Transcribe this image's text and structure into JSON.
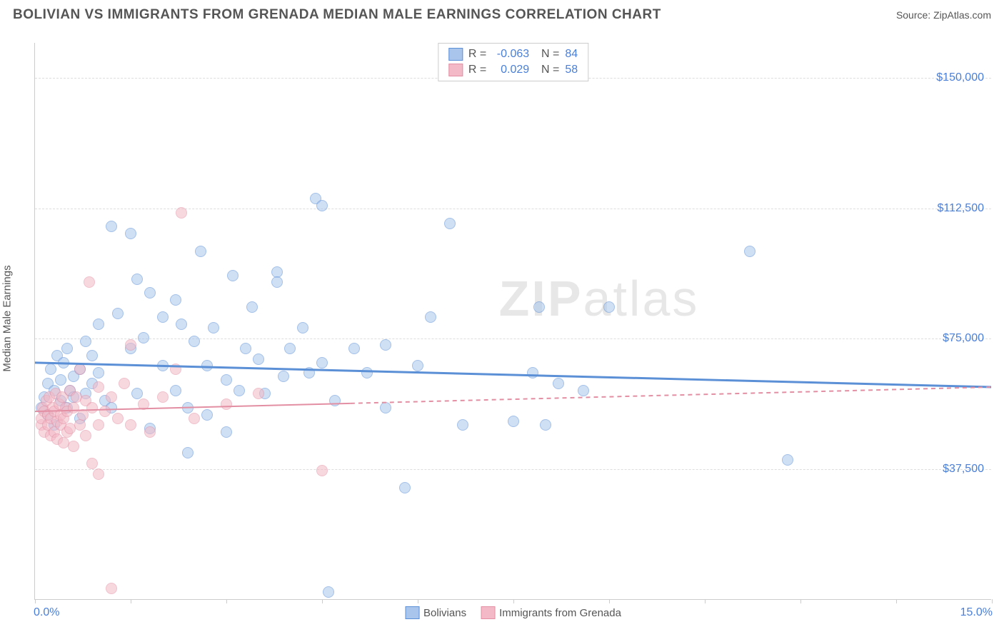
{
  "title": "BOLIVIAN VS IMMIGRANTS FROM GRENADA MEDIAN MALE EARNINGS CORRELATION CHART",
  "source_label": "Source: ",
  "source_value": "ZipAtlas.com",
  "ylabel": "Median Male Earnings",
  "watermark": "ZIPatlas",
  "chart": {
    "type": "scatter",
    "background_color": "#ffffff",
    "grid_color": "#dddddd",
    "axis_color": "#cccccc",
    "text_color": "#555555",
    "value_color": "#4a7fd8",
    "xlim": [
      0,
      15
    ],
    "ylim": [
      0,
      160000
    ],
    "xticks_pct": [
      0,
      10,
      20,
      30,
      40,
      50,
      60,
      70,
      80,
      90,
      100
    ],
    "yticks": [
      {
        "v": 37500,
        "label": "$37,500"
      },
      {
        "v": 75000,
        "label": "$75,000"
      },
      {
        "v": 112500,
        "label": "$112,500"
      },
      {
        "v": 150000,
        "label": "$150,000"
      }
    ],
    "x_start_label": "0.0%",
    "x_end_label": "15.0%",
    "marker_radius": 8,
    "marker_opacity": 0.55,
    "series": [
      {
        "name": "Bolivians",
        "fill": "#a9c5ec",
        "stroke": "#5b8fd6",
        "R": "-0.063",
        "N": "84",
        "trend": {
          "y_start": 68000,
          "y_end": 61000,
          "width": 3,
          "dash": "none",
          "x_extent_pct": 100
        },
        "points": [
          [
            0.1,
            55000
          ],
          [
            0.15,
            58000
          ],
          [
            0.2,
            62000
          ],
          [
            0.2,
            53000
          ],
          [
            0.25,
            66000
          ],
          [
            0.3,
            60000
          ],
          [
            0.3,
            50000
          ],
          [
            0.35,
            70000
          ],
          [
            0.4,
            57000
          ],
          [
            0.4,
            63000
          ],
          [
            0.45,
            68000
          ],
          [
            0.5,
            55000
          ],
          [
            0.5,
            72000
          ],
          [
            0.55,
            60000
          ],
          [
            0.6,
            64000
          ],
          [
            0.6,
            58000
          ],
          [
            0.7,
            66000
          ],
          [
            0.7,
            52000
          ],
          [
            0.8,
            74000
          ],
          [
            0.8,
            59000
          ],
          [
            0.9,
            70000
          ],
          [
            0.9,
            62000
          ],
          [
            1.0,
            79000
          ],
          [
            1.0,
            65000
          ],
          [
            1.1,
            57000
          ],
          [
            1.2,
            55000
          ],
          [
            1.2,
            107000
          ],
          [
            1.3,
            82000
          ],
          [
            1.5,
            105000
          ],
          [
            1.5,
            72000
          ],
          [
            1.6,
            92000
          ],
          [
            1.6,
            59000
          ],
          [
            1.7,
            75000
          ],
          [
            1.8,
            88000
          ],
          [
            1.8,
            49000
          ],
          [
            2.0,
            67000
          ],
          [
            2.0,
            81000
          ],
          [
            2.2,
            86000
          ],
          [
            2.2,
            60000
          ],
          [
            2.3,
            79000
          ],
          [
            2.4,
            42000
          ],
          [
            2.4,
            55000
          ],
          [
            2.5,
            74000
          ],
          [
            2.6,
            100000
          ],
          [
            2.7,
            53000
          ],
          [
            2.7,
            67000
          ],
          [
            2.8,
            78000
          ],
          [
            3.0,
            63000
          ],
          [
            3.0,
            48000
          ],
          [
            3.1,
            93000
          ],
          [
            3.2,
            60000
          ],
          [
            3.3,
            72000
          ],
          [
            3.4,
            84000
          ],
          [
            3.5,
            69000
          ],
          [
            3.6,
            59000
          ],
          [
            3.8,
            94000
          ],
          [
            3.8,
            91000
          ],
          [
            3.9,
            64000
          ],
          [
            4.0,
            72000
          ],
          [
            4.2,
            78000
          ],
          [
            4.4,
            115000
          ],
          [
            4.5,
            68000
          ],
          [
            4.5,
            113000
          ],
          [
            4.6,
            2000
          ],
          [
            4.7,
            57000
          ],
          [
            5.0,
            72000
          ],
          [
            5.2,
            65000
          ],
          [
            5.5,
            55000
          ],
          [
            5.5,
            73000
          ],
          [
            5.8,
            32000
          ],
          [
            6.0,
            67000
          ],
          [
            6.2,
            81000
          ],
          [
            6.5,
            108000
          ],
          [
            6.7,
            50000
          ],
          [
            7.5,
            51000
          ],
          [
            7.8,
            65000
          ],
          [
            7.9,
            84000
          ],
          [
            8.0,
            50000
          ],
          [
            8.6,
            60000
          ],
          [
            9.0,
            84000
          ],
          [
            11.2,
            100000
          ],
          [
            11.8,
            40000
          ],
          [
            8.2,
            62000
          ],
          [
            4.3,
            65000
          ]
        ]
      },
      {
        "name": "Immigrants from Grenada",
        "fill": "#f3b9c6",
        "stroke": "#e38fa3",
        "R": "0.029",
        "N": "58",
        "trend": {
          "y_start": 54000,
          "y_end": 61000,
          "width": 2,
          "dash": "6,5",
          "x_extent_pct": 100,
          "solid_until_pct": 33
        },
        "points": [
          [
            0.1,
            50000
          ],
          [
            0.1,
            52000
          ],
          [
            0.12,
            55000
          ],
          [
            0.15,
            48000
          ],
          [
            0.15,
            54000
          ],
          [
            0.18,
            57000
          ],
          [
            0.2,
            50000
          ],
          [
            0.2,
            53000
          ],
          [
            0.22,
            58000
          ],
          [
            0.25,
            47000
          ],
          [
            0.25,
            52000
          ],
          [
            0.28,
            55000
          ],
          [
            0.3,
            48000
          ],
          [
            0.3,
            54000
          ],
          [
            0.32,
            59000
          ],
          [
            0.35,
            46000
          ],
          [
            0.35,
            51000
          ],
          [
            0.38,
            56000
          ],
          [
            0.4,
            50000
          ],
          [
            0.4,
            53000
          ],
          [
            0.42,
            58000
          ],
          [
            0.45,
            45000
          ],
          [
            0.45,
            52000
          ],
          [
            0.48,
            55000
          ],
          [
            0.5,
            48000
          ],
          [
            0.5,
            54000
          ],
          [
            0.55,
            60000
          ],
          [
            0.55,
            49000
          ],
          [
            0.6,
            55000
          ],
          [
            0.6,
            44000
          ],
          [
            0.65,
            58000
          ],
          [
            0.7,
            50000
          ],
          [
            0.7,
            66000
          ],
          [
            0.75,
            53000
          ],
          [
            0.8,
            57000
          ],
          [
            0.8,
            47000
          ],
          [
            0.85,
            91000
          ],
          [
            0.9,
            55000
          ],
          [
            0.9,
            39000
          ],
          [
            1.0,
            50000
          ],
          [
            1.0,
            61000
          ],
          [
            1.0,
            36000
          ],
          [
            1.1,
            54000
          ],
          [
            1.2,
            58000
          ],
          [
            1.2,
            3000
          ],
          [
            1.3,
            52000
          ],
          [
            1.4,
            62000
          ],
          [
            1.5,
            50000
          ],
          [
            1.5,
            73000
          ],
          [
            1.7,
            56000
          ],
          [
            1.8,
            48000
          ],
          [
            2.0,
            58000
          ],
          [
            2.2,
            66000
          ],
          [
            2.3,
            111000
          ],
          [
            2.5,
            52000
          ],
          [
            3.0,
            56000
          ],
          [
            3.5,
            59000
          ],
          [
            4.5,
            37000
          ]
        ]
      }
    ]
  }
}
